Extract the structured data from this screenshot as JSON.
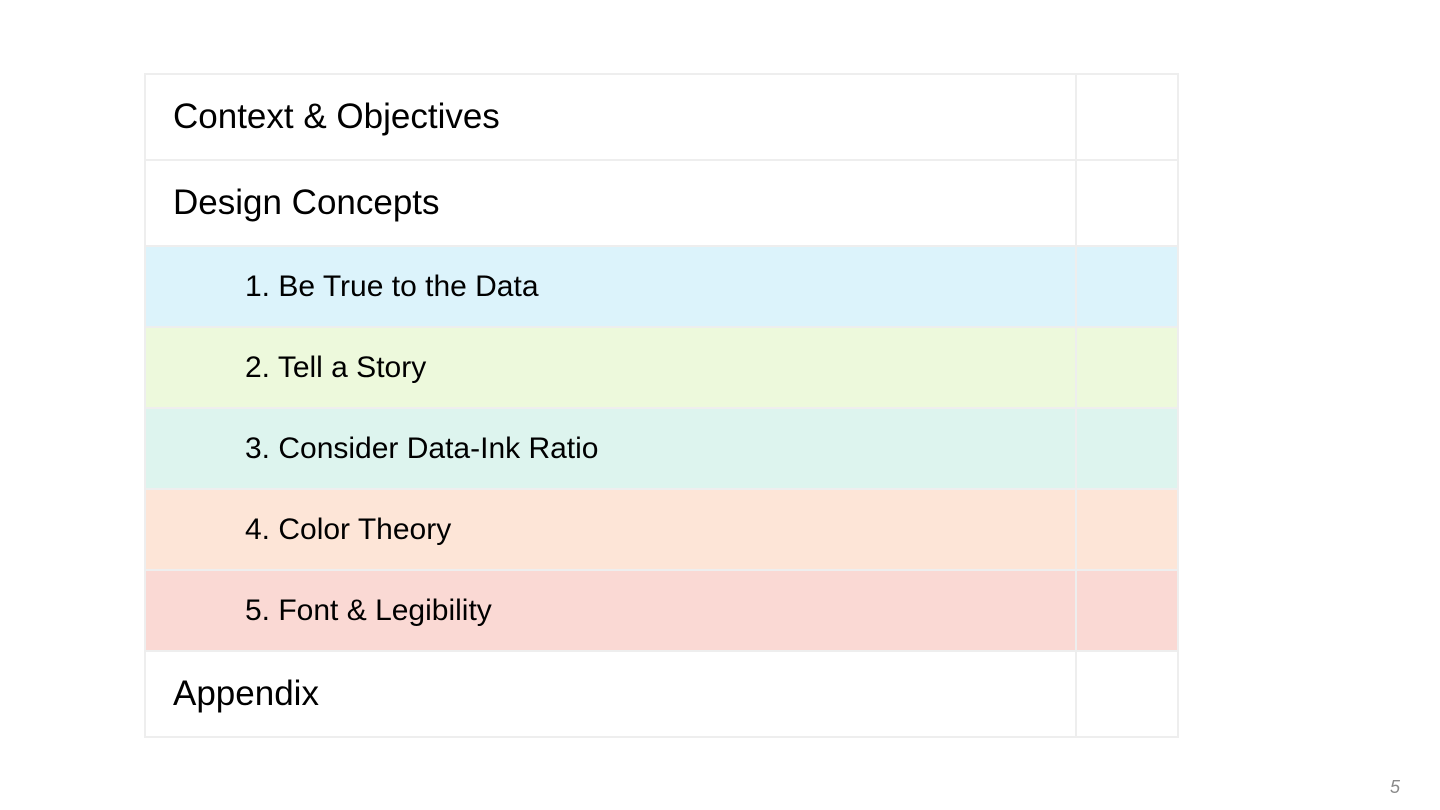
{
  "agenda": {
    "items": [
      {
        "label": "Context & Objectives",
        "level": "top",
        "color": "#ffffff"
      },
      {
        "label": "Design Concepts",
        "level": "top",
        "color": "#ffffff"
      },
      {
        "label": "1. Be True to the Data",
        "level": "sub",
        "color": "#dcf3fb"
      },
      {
        "label": "2. Tell a Story",
        "level": "sub",
        "color": "#edf9dc"
      },
      {
        "label": "3. Consider Data-Ink Ratio",
        "level": "sub",
        "color": "#ddf4ee"
      },
      {
        "label": "4. Color Theory",
        "level": "sub",
        "color": "#fde5d7"
      },
      {
        "label": "5. Font & Legibility",
        "level": "sub",
        "color": "#fad9d4"
      },
      {
        "label": "Appendix",
        "level": "top",
        "color": "#ffffff"
      }
    ]
  },
  "footer": {
    "page_number": "5"
  }
}
